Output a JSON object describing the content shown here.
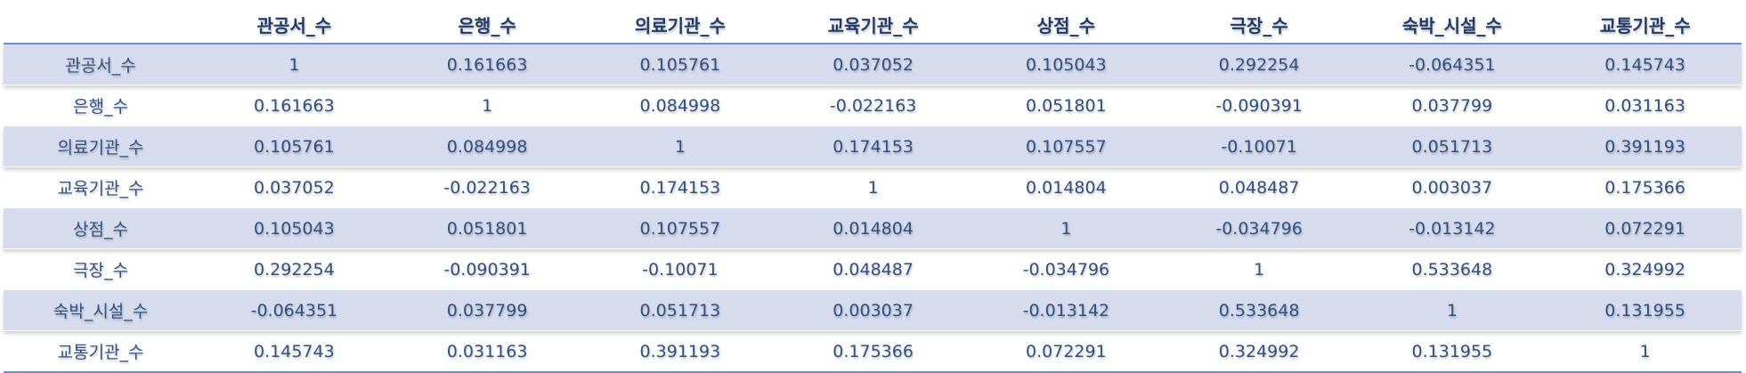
{
  "table": {
    "corner": "",
    "columns": [
      "관공서_수",
      "은행_수",
      "의료기관_수",
      "교육기관_수",
      "상점_수",
      "극장_수",
      "숙박_시설_수",
      "교통기관_수"
    ],
    "rows": [
      {
        "label": "관공서_수",
        "values": [
          "1",
          "0.161663",
          "0.105761",
          "0.037052",
          "0.105043",
          "0.292254",
          "-0.064351",
          "0.145743"
        ]
      },
      {
        "label": "은행_수",
        "values": [
          "0.161663",
          "1",
          "0.084998",
          "-0.022163",
          "0.051801",
          "-0.090391",
          "0.037799",
          "0.031163"
        ]
      },
      {
        "label": "의료기관_수",
        "values": [
          "0.105761",
          "0.084998",
          "1",
          "0.174153",
          "0.107557",
          "-0.10071",
          "0.051713",
          "0.391193"
        ]
      },
      {
        "label": "교육기관_수",
        "values": [
          "0.037052",
          "-0.022163",
          "0.174153",
          "1",
          "0.014804",
          "0.048487",
          "0.003037",
          "0.175366"
        ]
      },
      {
        "label": "상점_수",
        "values": [
          "0.105043",
          "0.051801",
          "0.107557",
          "0.014804",
          "1",
          "-0.034796",
          "-0.013142",
          "0.072291"
        ]
      },
      {
        "label": "극장_수",
        "values": [
          "0.292254",
          "-0.090391",
          "-0.10071",
          "0.048487",
          "-0.034796",
          "1",
          "0.533648",
          "0.324992"
        ]
      },
      {
        "label": "숙박_시설_수",
        "values": [
          "-0.064351",
          "0.037799",
          "0.051713",
          "0.003037",
          "-0.013142",
          "0.533648",
          "1",
          "0.131955"
        ]
      },
      {
        "label": "교통기관_수",
        "values": [
          "0.145743",
          "0.031163",
          "0.391193",
          "0.175366",
          "0.072291",
          "0.324992",
          "0.131955",
          "1"
        ]
      }
    ]
  },
  "colors": {
    "header_text": "#1f3a68",
    "cell_text": "#2f4f7f",
    "stripe": "#d6dcee",
    "rule": "#6f8fc8"
  }
}
